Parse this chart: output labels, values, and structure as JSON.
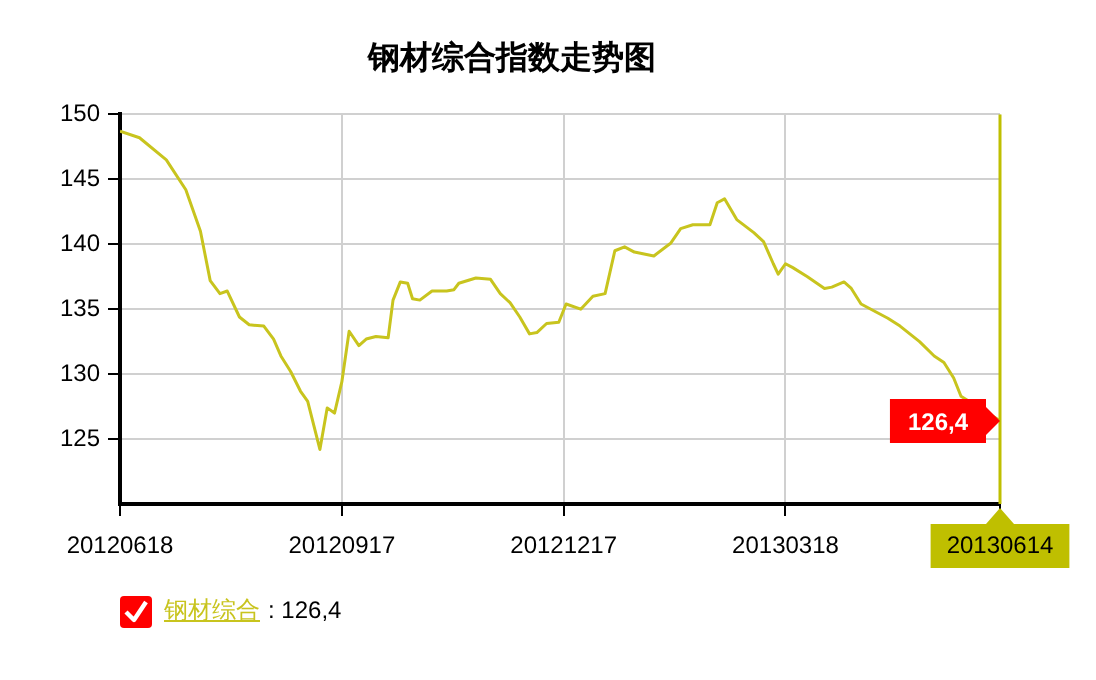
{
  "chart_data": {
    "type": "line",
    "title": "钢材综合指数走势图",
    "series": [
      {
        "name": "钢材综合",
        "color": "#c8c41e",
        "x": [
          "2012-06-18",
          "2012-06-26",
          "2012-07-07",
          "2012-07-15",
          "2012-07-21",
          "2012-07-25",
          "2012-07-29",
          "2012-08-01",
          "2012-08-06",
          "2012-08-10",
          "2012-08-16",
          "2012-08-20",
          "2012-08-23",
          "2012-08-27",
          "2012-08-31",
          "2012-09-03",
          "2012-09-08",
          "2012-09-11",
          "2012-09-14",
          "2012-09-17",
          "2012-09-20",
          "2012-09-24",
          "2012-09-27",
          "2012-10-01",
          "2012-10-06",
          "2012-10-08",
          "2012-10-11",
          "2012-10-14",
          "2012-10-16",
          "2012-10-19",
          "2012-10-24",
          "2012-10-30",
          "2012-11-02",
          "2012-11-04",
          "2012-11-11",
          "2012-11-17",
          "2012-11-21",
          "2012-11-25",
          "2012-11-29",
          "2012-12-03",
          "2012-12-06",
          "2012-12-10",
          "2012-12-15",
          "2012-12-18",
          "2012-12-24",
          "2012-12-29",
          "2013-01-03",
          "2013-01-07",
          "2013-01-11",
          "2013-01-15",
          "2013-01-23",
          "2013-01-30",
          "2013-02-03",
          "2013-02-08",
          "2013-02-15",
          "2013-02-18",
          "2013-02-21",
          "2013-02-26",
          "2013-03-05",
          "2013-03-09",
          "2013-03-13",
          "2013-03-15",
          "2013-03-18",
          "2013-03-21",
          "2013-03-27",
          "2013-04-03",
          "2013-04-06",
          "2013-04-11",
          "2013-04-14",
          "2013-04-18",
          "2013-04-23",
          "2013-04-29",
          "2013-05-04",
          "2013-05-12",
          "2013-05-18",
          "2013-05-22",
          "2013-05-26",
          "2013-05-29",
          "2013-06-14"
        ],
        "values": [
          148.7,
          148.2,
          146.5,
          144.2,
          141.0,
          137.2,
          136.2,
          136.4,
          134.4,
          133.8,
          133.7,
          132.7,
          131.4,
          130.2,
          128.7,
          127.9,
          124.2,
          127.4,
          127.0,
          129.4,
          133.3,
          132.2,
          132.7,
          132.9,
          132.8,
          135.7,
          137.1,
          137.0,
          135.8,
          135.7,
          136.4,
          136.4,
          136.5,
          137.0,
          137.4,
          137.3,
          136.2,
          135.5,
          134.4,
          133.1,
          133.2,
          133.9,
          134.0,
          135.4,
          135.0,
          136.0,
          136.2,
          139.5,
          139.8,
          139.4,
          139.1,
          140.1,
          141.2,
          141.5,
          141.5,
          143.2,
          143.5,
          141.9,
          140.9,
          140.2,
          138.5,
          137.7,
          138.5,
          138.2,
          137.5,
          136.6,
          136.7,
          137.1,
          136.6,
          135.4,
          134.9,
          134.3,
          133.7,
          132.5,
          131.4,
          130.9,
          129.7,
          128.3,
          126.4
        ]
      }
    ],
    "xlim": [
      "2012-06-18",
      "2013-06-14"
    ],
    "xticks": [
      {
        "value": "2012-06-18",
        "label": "20120618"
      },
      {
        "value": "2012-09-17",
        "label": "20120917"
      },
      {
        "value": "2012-12-17",
        "label": "20121217"
      },
      {
        "value": "2013-03-18",
        "label": "20130318"
      },
      {
        "value": "2013-06-14",
        "label": "20130614"
      }
    ],
    "ylim": [
      120,
      150
    ],
    "yticks": [
      125,
      130,
      135,
      140,
      145,
      150
    ],
    "grid": true,
    "legend": "bottom left",
    "marker": "none",
    "line_style": "solid",
    "ref_lines": [
      {
        "axis": "x",
        "value": "2013-06-14",
        "color": "#bfbf00"
      }
    ],
    "annotations": [
      {
        "text": "126,4",
        "x": "2013-06-14",
        "y": 126.4
      },
      ": 126,4"
    ]
  }
}
